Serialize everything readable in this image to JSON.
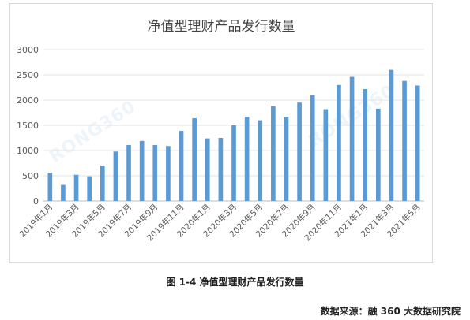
{
  "caption": "图 1-4 净值型理财产品发行数量",
  "source": "数据来源：融 360 大数据研究院",
  "watermark": "RONG360",
  "chart_data": {
    "type": "bar",
    "title": "净值型理财产品发行数量",
    "xlabel": "",
    "ylabel": "",
    "ylim": [
      0,
      3000
    ],
    "yticks": [
      0,
      500,
      1000,
      1500,
      2000,
      2500,
      3000
    ],
    "grid": true,
    "bar_color": "#5b9bd5",
    "categories": [
      "2019年1月",
      "2019年2月",
      "2019年3月",
      "2019年4月",
      "2019年5月",
      "2019年6月",
      "2019年7月",
      "2019年8月",
      "2019年9月",
      "2019年10月",
      "2019年11月",
      "2019年12月",
      "2020年1月",
      "2020年2月",
      "2020年3月",
      "2020年4月",
      "2020年5月",
      "2020年6月",
      "2020年7月",
      "2020年8月",
      "2020年9月",
      "2020年10月",
      "2020年11月",
      "2020年12月",
      "2021年1月",
      "2021年2月",
      "2021年3月",
      "2021年4月",
      "2021年5月"
    ],
    "tick_labels": [
      "2019年1月",
      "2019年3月",
      "2019年5月",
      "2019年7月",
      "2019年9月",
      "2019年11月",
      "2020年1月",
      "2020年3月",
      "2020年5月",
      "2020年7月",
      "2020年9月",
      "2020年11月",
      "2021年1月",
      "2021年3月",
      "2021年5月"
    ],
    "values": [
      560,
      320,
      520,
      490,
      700,
      980,
      1110,
      1190,
      1110,
      1090,
      1390,
      1640,
      1240,
      1250,
      1500,
      1670,
      1600,
      1880,
      1670,
      1950,
      2100,
      1820,
      2300,
      2460,
      2220,
      1830,
      2600,
      2380,
      2290
    ]
  }
}
